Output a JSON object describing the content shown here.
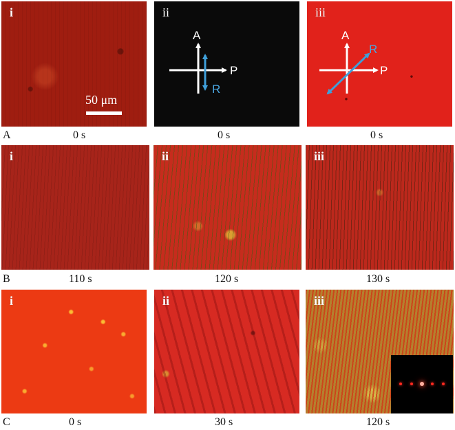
{
  "rows": [
    {
      "label": "A",
      "panels": [
        {
          "sub": "i",
          "time": "0 s",
          "scalebar": "50 μm"
        },
        {
          "sub": "ii",
          "time": "0 s",
          "axes": {
            "a": "A",
            "p": "P",
            "r": "R"
          }
        },
        {
          "sub": "iii",
          "time": "0 s",
          "axes": {
            "a": "A",
            "p": "P",
            "r": "R"
          }
        }
      ]
    },
    {
      "label": "B",
      "panels": [
        {
          "sub": "i",
          "time": "110 s"
        },
        {
          "sub": "ii",
          "time": "120 s"
        },
        {
          "sub": "iii",
          "time": "130 s"
        }
      ]
    },
    {
      "label": "C",
      "panels": [
        {
          "sub": "i",
          "time": "0 s"
        },
        {
          "sub": "ii",
          "time": "30 s"
        },
        {
          "sub": "iii",
          "time": "120 s"
        }
      ]
    }
  ],
  "colors": {
    "arrow_white": "#ffffff",
    "arrow_blue": "#3f9fd9",
    "label_blue": "#4aa6e0"
  },
  "icons": [
    "polarizer-analyzer-axes-icon",
    "rubbing-direction-arrow-icon",
    "diffraction-pattern-inset"
  ]
}
